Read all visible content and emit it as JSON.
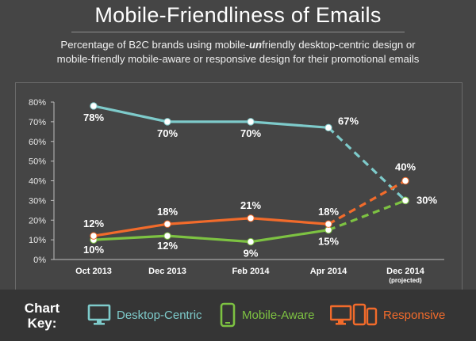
{
  "header": {
    "title": "Mobile-Friendliness of Emails",
    "subtitle_a": "Percentage of B2C brands using mobile-",
    "subtitle_em": "un",
    "subtitle_b": "friendly desktop-centric design or",
    "subtitle_line2": "mobile-friendly mobile-aware or responsive design for their promotional emails"
  },
  "chart_data": {
    "type": "line",
    "categories": [
      "Oct 2013",
      "Dec 2013",
      "Feb 2014",
      "Apr 2014",
      "Dec 2014"
    ],
    "category_notes": [
      "",
      "",
      "",
      "",
      "(projected)"
    ],
    "ylim": [
      0,
      80
    ],
    "yticks": [
      "0%",
      "10%",
      "20%",
      "30%",
      "40%",
      "50%",
      "60%",
      "70%",
      "80%"
    ],
    "projected_from_index": 3,
    "series": [
      {
        "name": "Desktop-Centric",
        "color": "#7ecbcb",
        "values": [
          78,
          70,
          70,
          67,
          30
        ],
        "labels": [
          "78%",
          "70%",
          "70%",
          "67%",
          "30%"
        ]
      },
      {
        "name": "Mobile-Aware",
        "color": "#7dc242",
        "values": [
          10,
          12,
          9,
          15,
          30
        ],
        "labels": [
          "10%",
          "12%",
          "9%",
          "15%",
          ""
        ]
      },
      {
        "name": "Responsive",
        "color": "#f26b2b",
        "values": [
          12,
          18,
          21,
          18,
          40
        ],
        "labels": [
          "12%",
          "18%",
          "21%",
          "18%",
          "40%"
        ]
      }
    ]
  },
  "legend": {
    "title_line1": "Chart",
    "title_line2": "Key:",
    "items": [
      {
        "label": "Desktop-Centric",
        "icon": "desktop-icon",
        "color": "#7ecbcb"
      },
      {
        "label": "Mobile-Aware",
        "icon": "phone-icon",
        "color": "#7dc242"
      },
      {
        "label": "Responsive",
        "icon": "devices-icon",
        "color": "#f26b2b"
      }
    ]
  }
}
